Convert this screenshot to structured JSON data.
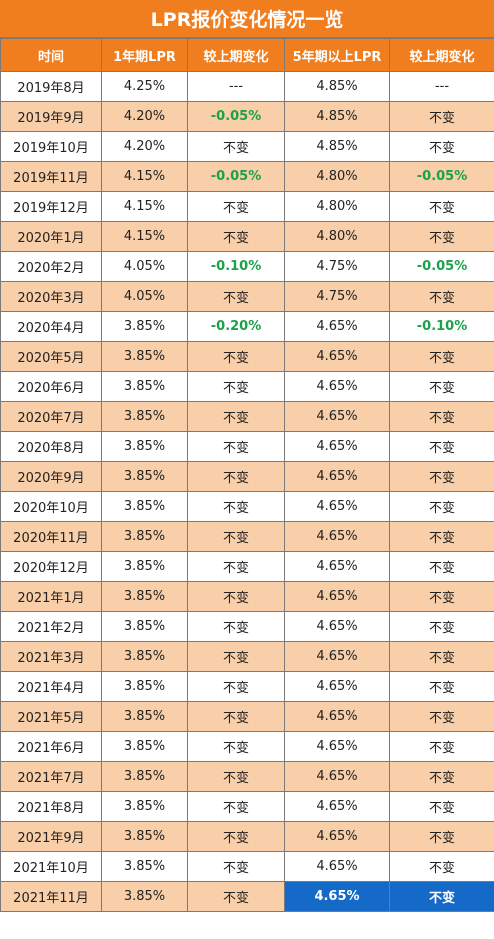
{
  "title": "LPR报价变化情况一览",
  "headers": [
    "时间",
    "1年期LPR",
    "较上期变化",
    "5年期以上LPR",
    "较上期变化"
  ],
  "colors": {
    "header": "#f07d1e",
    "alt_row": "#f8cfa9",
    "change": "#1aa24a",
    "highlight": "#1569c7"
  },
  "rows": [
    [
      "2019年8月",
      "4.25%",
      "---",
      "4.85%",
      "---"
    ],
    [
      "2019年9月",
      "4.20%",
      "-0.05%",
      "4.85%",
      "不变"
    ],
    [
      "2019年10月",
      "4.20%",
      "不变",
      "4.85%",
      "不变"
    ],
    [
      "2019年11月",
      "4.15%",
      "-0.05%",
      "4.80%",
      "-0.05%"
    ],
    [
      "2019年12月",
      "4.15%",
      "不变",
      "4.80%",
      "不变"
    ],
    [
      "2020年1月",
      "4.15%",
      "不变",
      "4.80%",
      "不变"
    ],
    [
      "2020年2月",
      "4.05%",
      "-0.10%",
      "4.75%",
      "-0.05%"
    ],
    [
      "2020年3月",
      "4.05%",
      "不变",
      "4.75%",
      "不变"
    ],
    [
      "2020年4月",
      "3.85%",
      "-0.20%",
      "4.65%",
      "-0.10%"
    ],
    [
      "2020年5月",
      "3.85%",
      "不变",
      "4.65%",
      "不变"
    ],
    [
      "2020年6月",
      "3.85%",
      "不变",
      "4.65%",
      "不变"
    ],
    [
      "2020年7月",
      "3.85%",
      "不变",
      "4.65%",
      "不变"
    ],
    [
      "2020年8月",
      "3.85%",
      "不变",
      "4.65%",
      "不变"
    ],
    [
      "2020年9月",
      "3.85%",
      "不变",
      "4.65%",
      "不变"
    ],
    [
      "2020年10月",
      "3.85%",
      "不变",
      "4.65%",
      "不变"
    ],
    [
      "2020年11月",
      "3.85%",
      "不变",
      "4.65%",
      "不变"
    ],
    [
      "2020年12月",
      "3.85%",
      "不变",
      "4.65%",
      "不变"
    ],
    [
      "2021年1月",
      "3.85%",
      "不变",
      "4.65%",
      "不变"
    ],
    [
      "2021年2月",
      "3.85%",
      "不变",
      "4.65%",
      "不变"
    ],
    [
      "2021年3月",
      "3.85%",
      "不变",
      "4.65%",
      "不变"
    ],
    [
      "2021年4月",
      "3.85%",
      "不变",
      "4.65%",
      "不变"
    ],
    [
      "2021年5月",
      "3.85%",
      "不变",
      "4.65%",
      "不变"
    ],
    [
      "2021年6月",
      "3.85%",
      "不变",
      "4.65%",
      "不变"
    ],
    [
      "2021年7月",
      "3.85%",
      "不变",
      "4.65%",
      "不变"
    ],
    [
      "2021年8月",
      "3.85%",
      "不变",
      "4.65%",
      "不变"
    ],
    [
      "2021年9月",
      "3.85%",
      "不变",
      "4.65%",
      "不变"
    ],
    [
      "2021年10月",
      "3.85%",
      "不变",
      "4.65%",
      "不变"
    ],
    [
      "2021年11月",
      "3.85%",
      "不变",
      "4.65%",
      "不变"
    ]
  ]
}
